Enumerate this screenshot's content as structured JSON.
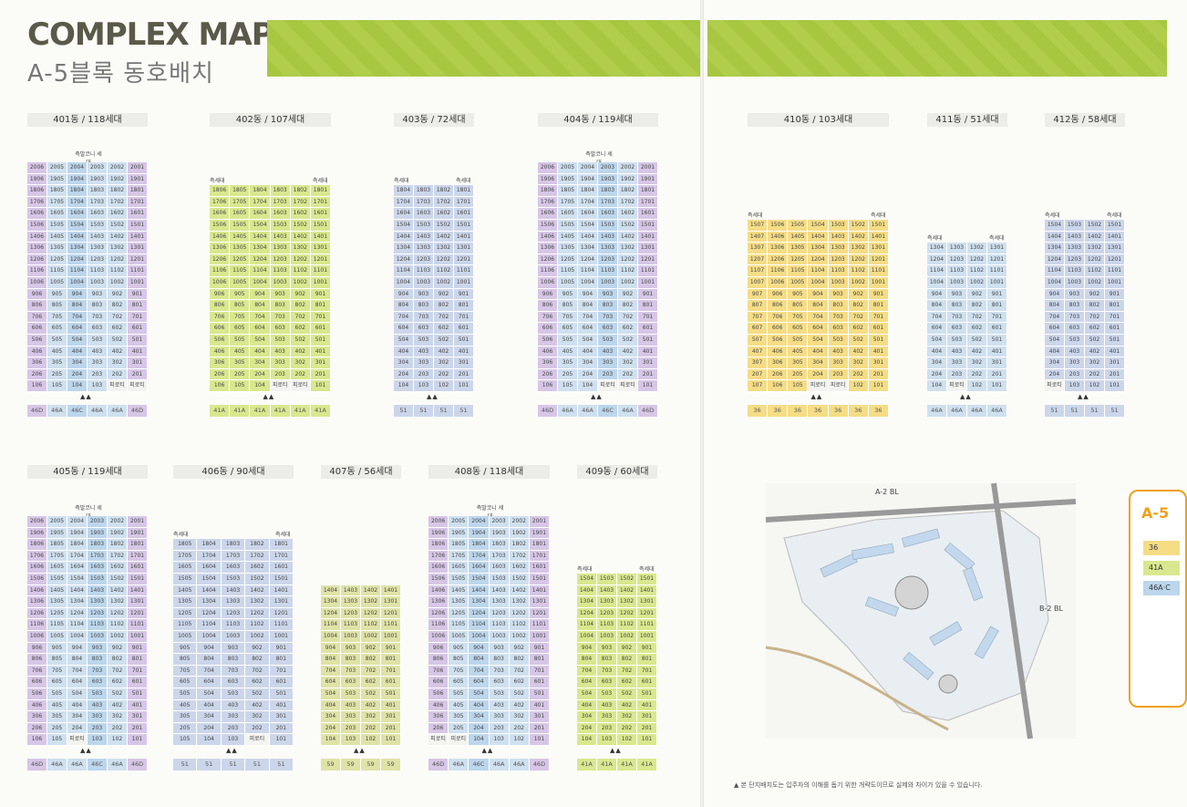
{
  "header": {
    "title": "COMPLEX MAP",
    "subtitle": "A-5블록 동호배치"
  },
  "colors": {
    "46D": "#d7c6e6",
    "46A": "#cfe0ef",
    "46C": "#bcd6ec",
    "41A": "#d9e88e",
    "51": "#ccd6ea",
    "36": "#f5dd86",
    "59": "#dfe3a6",
    "bg": "#fbfbf8",
    "banner": "#a7c742",
    "legend": "#f0a018"
  },
  "labels": {
    "corner": "측세대",
    "pilotis": "필로티",
    "balcony": "측발코니 세 대"
  },
  "buildings": [
    {
      "id": "401",
      "label": "401동 / 118세대",
      "topFloor": 20,
      "units": [
        6,
        5,
        4,
        3,
        2,
        1
      ],
      "types": [
        "46D",
        "46A",
        "46C",
        "46A",
        "46A",
        "46D"
      ],
      "bottom": {
        "1": "피로티",
        "2": "피로티"
      },
      "arrows": "▲▲",
      "corner": false,
      "balcony": true
    },
    {
      "id": "402",
      "label": "402동 / 107세대",
      "topFloor": 18,
      "units": [
        6,
        5,
        4,
        3,
        2,
        1
      ],
      "types": [
        "41A",
        "41A",
        "41A",
        "41A",
        "41A",
        "41A"
      ],
      "bottom": {
        "3": "피로티",
        "2": "피로티"
      },
      "arrows": "▲▲",
      "corner": true
    },
    {
      "id": "403",
      "label": "403동 / 72세대",
      "topFloor": 18,
      "units": [
        4,
        3,
        2,
        1
      ],
      "types": [
        "51",
        "51",
        "51",
        "51"
      ],
      "bottom": {},
      "arrows": "▲▲",
      "corner": true
    },
    {
      "id": "404",
      "label": "404동 / 119세대",
      "topFloor": 20,
      "units": [
        6,
        5,
        4,
        3,
        2,
        1
      ],
      "types": [
        "46D",
        "46A",
        "46A",
        "46C",
        "46A",
        "46D"
      ],
      "bottom": {
        "3": "피로티",
        "2": "피로티"
      },
      "arrows": "▲▲",
      "balcony": true
    },
    {
      "id": "410",
      "label": "410동 / 103세대",
      "topFloor": 15,
      "units": [
        7,
        6,
        5,
        4,
        3,
        2,
        1
      ],
      "types": [
        "36",
        "36",
        "36",
        "36",
        "36",
        "36",
        "36"
      ],
      "bottom": {
        "4": "피로티",
        "3": "피로티"
      },
      "arrows": "▲▲",
      "corner": true
    },
    {
      "id": "411",
      "label": "411동 / 51세대",
      "topFloor": 13,
      "units": [
        4,
        3,
        2,
        1
      ],
      "types": [
        "46A",
        "46A",
        "46A",
        "46A"
      ],
      "bottom": {
        "3": "피로티"
      },
      "arrows": "▲▲",
      "corner": true
    },
    {
      "id": "412",
      "label": "412동 / 58세대",
      "topFloor": 15,
      "units": [
        4,
        3,
        2,
        1
      ],
      "types": [
        "51",
        "51",
        "51",
        "51"
      ],
      "bottom": {
        "4": "피로티"
      },
      "arrows": "▲▲",
      "corner": true
    },
    {
      "id": "405",
      "label": "405동 / 119세대",
      "topFloor": 20,
      "units": [
        6,
        5,
        4,
        3,
        2,
        1
      ],
      "types": [
        "46D",
        "46A",
        "46A",
        "46C",
        "46A",
        "46D"
      ],
      "bottom": {
        "4": "피로티"
      },
      "arrows": "▲▲",
      "balcony": true
    },
    {
      "id": "406",
      "label": "406동 / 90세대",
      "topFloor": 18,
      "units": [
        5,
        4,
        3,
        2,
        1
      ],
      "types": [
        "51",
        "51",
        "51",
        "51",
        "51"
      ],
      "bottom": {
        "2": "피로티"
      },
      "arrows": "▲▲",
      "corner": true
    },
    {
      "id": "407",
      "label": "407동 / 56세대",
      "topFloor": 14,
      "units": [
        4,
        3,
        2,
        1
      ],
      "types": [
        "59",
        "59",
        "59",
        "59"
      ],
      "bottom": {},
      "arrows": "▲▲",
      "corner": false
    },
    {
      "id": "408",
      "label": "408동 / 118세대",
      "topFloor": 20,
      "units": [
        6,
        5,
        4,
        3,
        2,
        1
      ],
      "types": [
        "46D",
        "46A",
        "46C",
        "46A",
        "46A",
        "46D"
      ],
      "bottom": {
        "6": "피로티",
        "5": "피로티"
      },
      "arrows": "▲▲",
      "balcony": true
    },
    {
      "id": "409",
      "label": "409동 / 60세대",
      "topFloor": 15,
      "units": [
        4,
        3,
        2,
        1
      ],
      "types": [
        "41A",
        "41A",
        "41A",
        "41A"
      ],
      "bottom": {},
      "arrows": "▲▲",
      "corner": true
    }
  ],
  "map": {
    "block_a2": "A-2 BL",
    "block_b2": "B-2 BL"
  },
  "legend": {
    "title": "A-5",
    "items": [
      "36",
      "41A",
      "46A·C"
    ]
  },
  "footnote": "▲ 본 단지배치도는 입주자의 이해를 돕기 위한 개략도이므로 실제와 차이가 있을 수 있습니다."
}
